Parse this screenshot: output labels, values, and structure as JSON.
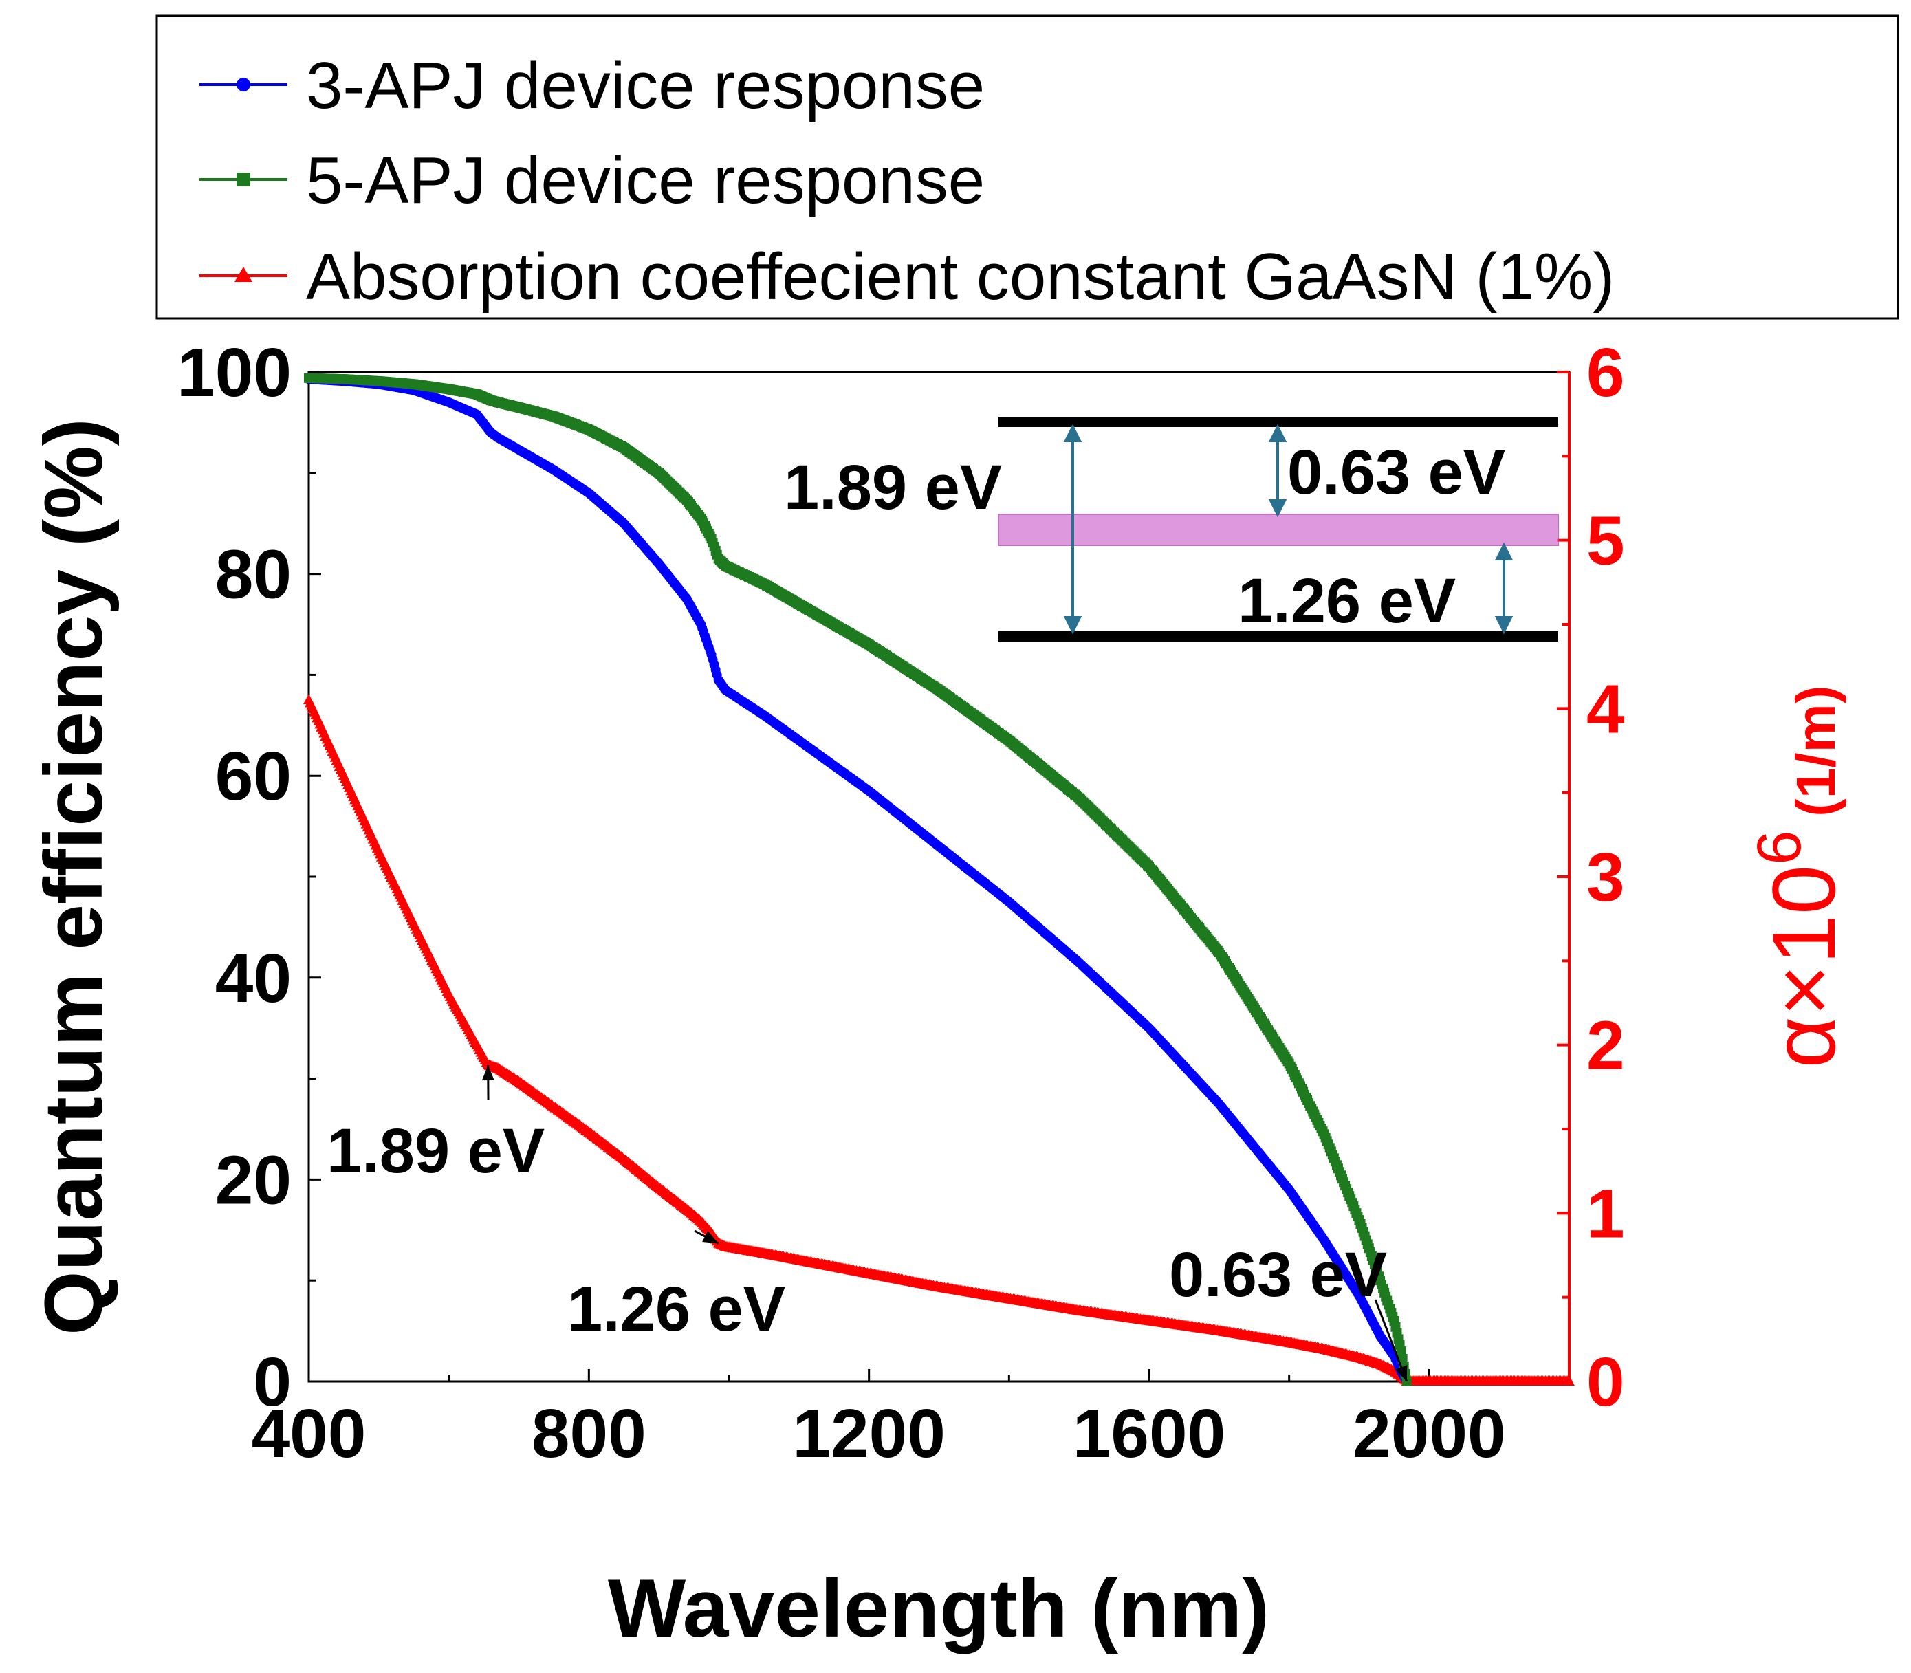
{
  "chart_data": {
    "type": "line",
    "title": "",
    "xlabel": "Wavelength (nm)",
    "ylabel": "Quantum efficiency (%)",
    "y2label_main": "α×10",
    "y2label_exp": "6",
    "y2label_unit": "(1/m)",
    "xlim": [
      400,
      2200
    ],
    "ylim": [
      0,
      100
    ],
    "y2lim": [
      0,
      6
    ],
    "xticks": [
      400,
      800,
      1200,
      1600,
      2000
    ],
    "yticks": [
      0,
      20,
      40,
      60,
      80,
      100
    ],
    "y2ticks": [
      0,
      1,
      2,
      3,
      4,
      5,
      6
    ],
    "grid": false,
    "legend_position": "top",
    "series": [
      {
        "name": "3-APJ device response",
        "axis": "left",
        "color": "#0000ff",
        "marker": "circle",
        "x": [
          400,
          450,
          500,
          550,
          600,
          640,
          660,
          670,
          700,
          750,
          800,
          850,
          900,
          940,
          960,
          975,
          985,
          995,
          1050,
          1100,
          1200,
          1300,
          1400,
          1500,
          1600,
          1700,
          1800,
          1850,
          1900,
          1930,
          1950,
          1960,
          1968
        ],
        "y": [
          99.3,
          99.1,
          98.8,
          98.2,
          97.0,
          95.8,
          94.0,
          93.5,
          92.3,
          90.3,
          88.0,
          85.0,
          81.0,
          77.5,
          75.0,
          72.0,
          69.5,
          68.5,
          66.0,
          63.5,
          58.5,
          53.0,
          47.5,
          41.5,
          35.0,
          27.5,
          19.0,
          14.0,
          8.5,
          4.5,
          2.5,
          1.0,
          0.0
        ]
      },
      {
        "name": "5-APJ device response",
        "axis": "left",
        "color": "#1e7a1e",
        "marker": "square",
        "x": [
          400,
          450,
          500,
          550,
          600,
          640,
          660,
          670,
          700,
          750,
          800,
          850,
          900,
          940,
          960,
          975,
          985,
          995,
          1050,
          1100,
          1200,
          1300,
          1400,
          1500,
          1600,
          1700,
          1800,
          1850,
          1900,
          1930,
          1950,
          1960,
          1968
        ],
        "y": [
          99.4,
          99.3,
          99.1,
          98.8,
          98.3,
          97.8,
          97.2,
          97.0,
          96.5,
          95.6,
          94.3,
          92.5,
          90.0,
          87.3,
          85.5,
          83.5,
          81.5,
          80.8,
          79.0,
          77.0,
          73.0,
          68.5,
          63.5,
          57.8,
          51.0,
          42.5,
          31.5,
          24.5,
          16.0,
          10.0,
          6.0,
          3.0,
          0.0
        ]
      },
      {
        "name": "Absorption coeffecient constant GaAsN (1%)",
        "axis": "right",
        "color": "#ff0000",
        "marker": "triangle",
        "x": [
          400,
          450,
          500,
          550,
          600,
          640,
          656,
          670,
          700,
          750,
          800,
          850,
          900,
          940,
          960,
          975,
          985,
          995,
          1050,
          1100,
          1200,
          1300,
          1400,
          1500,
          1600,
          1700,
          1800,
          1850,
          1900,
          1930,
          1950,
          1960,
          1968,
          2000,
          2100,
          2200
        ],
        "y": [
          4.05,
          3.6,
          3.15,
          2.72,
          2.3,
          2.0,
          1.88,
          1.86,
          1.78,
          1.63,
          1.48,
          1.32,
          1.15,
          1.02,
          0.95,
          0.88,
          0.82,
          0.8,
          0.76,
          0.72,
          0.64,
          0.56,
          0.49,
          0.42,
          0.36,
          0.3,
          0.23,
          0.19,
          0.14,
          0.1,
          0.06,
          0.03,
          0.0,
          0.0,
          0.0,
          0.0
        ]
      }
    ],
    "annotations": [
      {
        "text": "1.89 eV",
        "x": 656,
        "y2": 1.88
      },
      {
        "text": "1.26 eV",
        "x": 985,
        "y2": 0.82
      },
      {
        "text": "0.63 eV",
        "x": 1968,
        "y2": 0.0
      }
    ],
    "inset": {
      "total_gap_label": "1.89 eV",
      "upper_gap_label": "0.63 eV",
      "lower_gap_label": "1.26 eV",
      "top_level_color": "#000000",
      "intermediate_band_color": "#d477d4",
      "bottom_level_color": "#000000"
    }
  }
}
